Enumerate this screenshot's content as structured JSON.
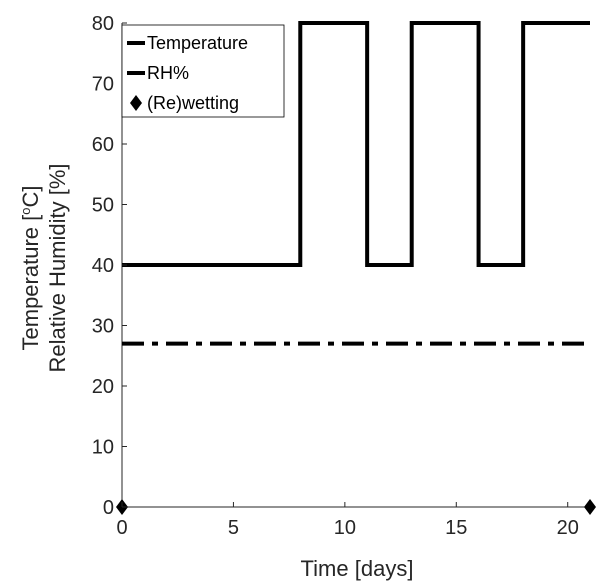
{
  "chart_data": {
    "type": "line",
    "xlabel": "Time [days]",
    "ylabel_line1": "Temperature [",
    "ylabel_sup": "o",
    "ylabel_unit": "C]",
    "ylabel_line2": "Relative Humidity [%]",
    "xlim": [
      0,
      21
    ],
    "ylim": [
      0,
      80
    ],
    "xticks": [
      0,
      5,
      10,
      15,
      20
    ],
    "yticks": [
      0,
      10,
      20,
      30,
      40,
      50,
      60,
      70,
      80
    ],
    "grid": false,
    "legend": {
      "placement": "top-left",
      "entries": [
        "Temperature",
        "RH%",
        "(Re)wetting"
      ]
    },
    "series": [
      {
        "name": "Temperature",
        "style": "dashed",
        "color": "#000000",
        "x": [
          0,
          21
        ],
        "y": [
          27,
          27
        ]
      },
      {
        "name": "RH%",
        "style": "solid",
        "color": "#000000",
        "x": [
          0,
          8,
          8,
          11,
          11,
          13,
          13,
          16,
          16,
          18,
          18,
          21
        ],
        "y": [
          40,
          40,
          80,
          80,
          40,
          40,
          80,
          80,
          40,
          40,
          80,
          80
        ]
      },
      {
        "name": "(Re)wetting",
        "style": "diamond-markers",
        "color": "#000000",
        "x": [
          0,
          21
        ],
        "y": [
          0,
          0
        ]
      }
    ]
  }
}
